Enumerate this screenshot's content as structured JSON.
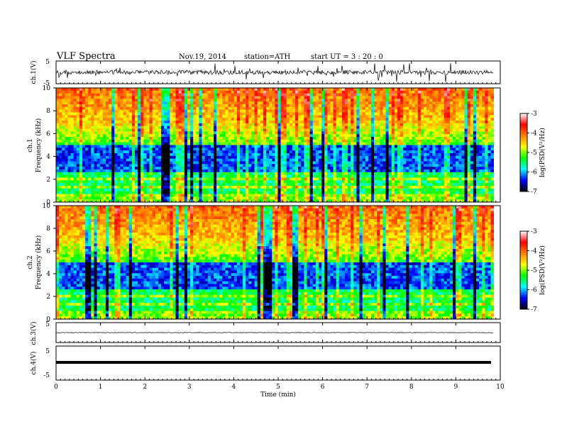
{
  "header": {
    "title": "VLF  Spectra",
    "date": "Nov.19, 2014",
    "station": "station=ATH",
    "start": "start  UT  =   3  : 20 : 0"
  },
  "chart_data": [
    {
      "type": "line",
      "name": "ch1-waveform",
      "ylabel": "ch.1(V)",
      "ylim": [
        -5,
        5
      ],
      "y_ticks": [
        "5",
        "-5"
      ],
      "xlim": [
        0,
        10
      ],
      "description_values": "noisy signal around 0 V with spikes up to about ±4 V",
      "baseline": 0
    },
    {
      "type": "heatmap",
      "name": "ch1-spectrogram",
      "ylabel": "ch.1\nFrequency  (kHz)",
      "ylabel_top": "ch.1",
      "ylabel_bottom": "Frequency  (kHz)",
      "ylim": [
        0,
        10
      ],
      "y_ticks": [
        "0",
        "2",
        "4",
        "6",
        "8",
        "10"
      ],
      "xlim": [
        0,
        9.85
      ],
      "colorbar": {
        "label": "log(PSD(V²/Hz)",
        "range": [
          -7,
          -3
        ],
        "ticks": [
          "-3",
          "-4",
          "-5",
          "-6",
          "-7"
        ]
      }
    },
    {
      "type": "heatmap",
      "name": "ch2-spectrogram",
      "ylabel_top": "ch.2",
      "ylabel_bottom": "Frequency  (kHz)",
      "ylim": [
        0,
        10
      ],
      "y_ticks": [
        "0",
        "2",
        "4",
        "6",
        "8",
        "10"
      ],
      "xlim": [
        0,
        9.85
      ],
      "colorbar": {
        "label": "log(PSD(V²/Hz)",
        "range": [
          -7,
          -3
        ],
        "ticks": [
          "-3",
          "-4",
          "-5",
          "-6",
          "-7"
        ]
      }
    },
    {
      "type": "line",
      "name": "ch3-waveform",
      "ylabel": "ch.3(V)",
      "ylim": [
        -5,
        5
      ],
      "y_ticks": [
        "5"
      ],
      "baseline": 0
    },
    {
      "type": "line",
      "name": "ch4-waveform",
      "ylabel": "ch.4(V)",
      "ylim": [
        -5,
        5
      ],
      "y_ticks": [
        "5",
        "-5"
      ],
      "baseline": 0
    }
  ],
  "xaxis": {
    "label": "Time  (min)",
    "ticks": [
      "0",
      "1",
      "2",
      "3",
      "4",
      "5",
      "6",
      "7",
      "8",
      "9",
      "10"
    ],
    "range": [
      0,
      10
    ]
  },
  "colors": {
    "scale": [
      "#000000",
      "#0000ff",
      "#00ffff",
      "#00ff00",
      "#ffff00",
      "#ff8000",
      "#ff0000",
      "#ffffff"
    ]
  }
}
